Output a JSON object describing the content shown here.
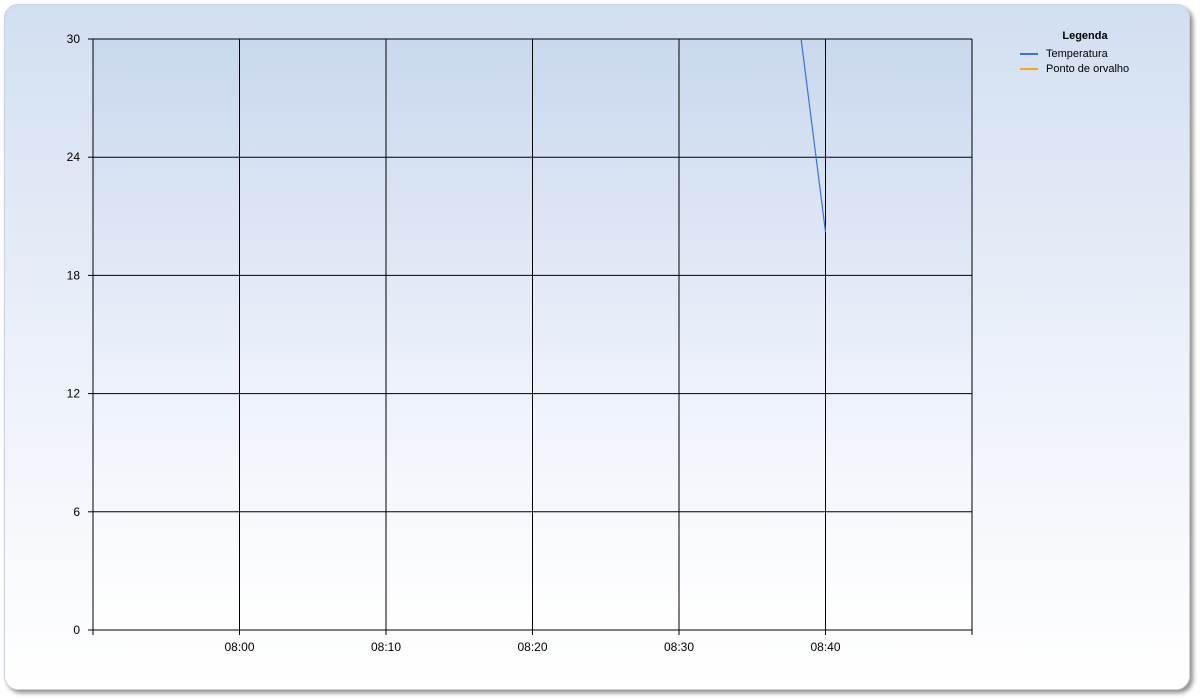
{
  "chart_data": {
    "type": "line",
    "title": "",
    "xlabel": "",
    "ylabel": "",
    "ylim": [
      0,
      30
    ],
    "yticks": [
      "0",
      "6",
      "12",
      "18",
      "24",
      "30"
    ],
    "xlim": [
      "07:50",
      "08:50"
    ],
    "xticks": [
      "08:00",
      "08:10",
      "08:20",
      "08:30",
      "08:40"
    ],
    "grid": true,
    "legend": {
      "title": "Legenda",
      "placement": "right"
    },
    "series": [
      {
        "name": "Temperatura",
        "color": "#3b73d9",
        "points": [
          {
            "x": "08:38:20",
            "y": 30
          },
          {
            "x": "08:40:00",
            "y": 20.2
          }
        ]
      },
      {
        "name": "Ponto de orvalho",
        "color": "#f5a623",
        "points": []
      }
    ]
  }
}
